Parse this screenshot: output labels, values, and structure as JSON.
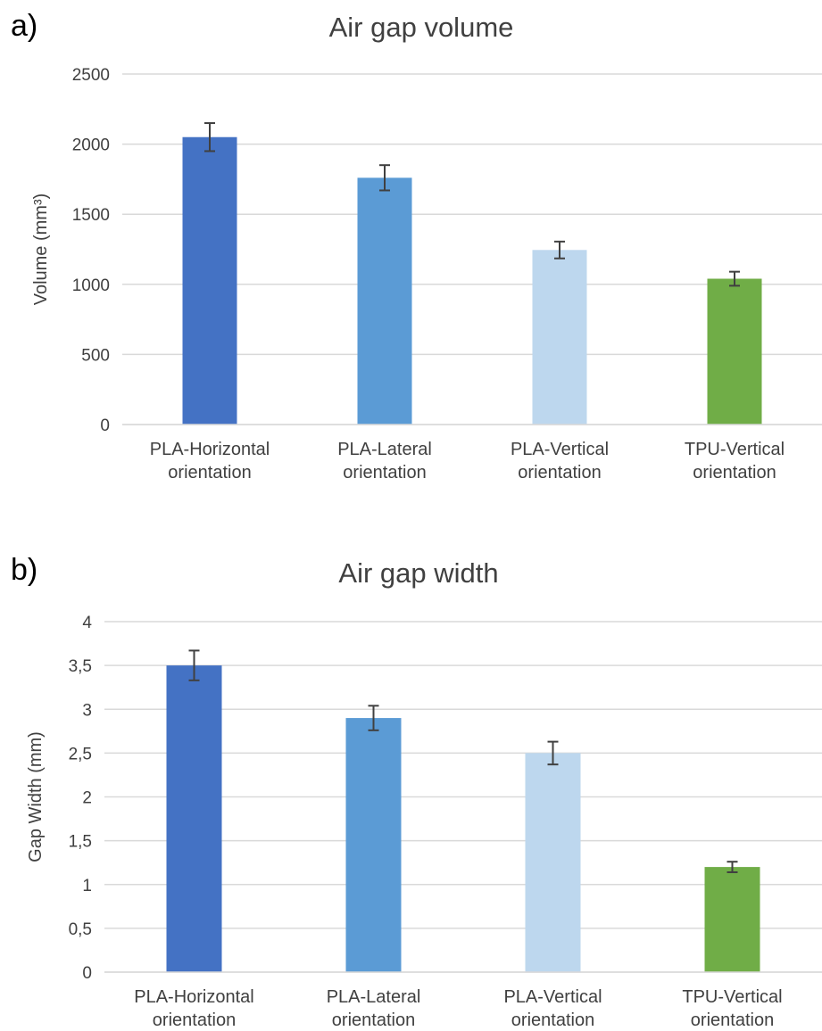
{
  "panel_labels": [
    "a)",
    "b)"
  ],
  "chart_data": [
    {
      "type": "bar",
      "title": "Air gap volume",
      "ylabel": "Volume (mm³)",
      "xlabel": "",
      "categories": [
        [
          "PLA-Horizontal",
          "orientation"
        ],
        [
          "PLA-Lateral",
          "orientation"
        ],
        [
          "PLA-Vertical",
          "orientation"
        ],
        [
          "TPU-Vertical",
          "orientation"
        ]
      ],
      "values": [
        2050,
        1760,
        1245,
        1040
      ],
      "errors": [
        100,
        90,
        60,
        50
      ],
      "colors": [
        "#4472c4",
        "#5b9bd5",
        "#bdd7ee",
        "#70ad47"
      ],
      "ylim": [
        0,
        2500
      ],
      "yticks": [
        "0",
        "500",
        "1000",
        "1500",
        "2000",
        "2500"
      ],
      "grid": true
    },
    {
      "type": "bar",
      "title": "Air gap width",
      "ylabel": "Gap Width (mm)",
      "xlabel": "",
      "categories": [
        [
          "PLA-Horizontal",
          "orientation"
        ],
        [
          "PLA-Lateral",
          "orientation"
        ],
        [
          "PLA-Vertical",
          "orientation"
        ],
        [
          "TPU-Vertical",
          "orientation"
        ]
      ],
      "values": [
        3.5,
        2.9,
        2.5,
        1.2
      ],
      "errors": [
        0.17,
        0.14,
        0.13,
        0.06
      ],
      "colors": [
        "#4472c4",
        "#5b9bd5",
        "#bdd7ee",
        "#70ad47"
      ],
      "ylim": [
        0,
        4
      ],
      "yticks": [
        "0",
        "0,5",
        "1",
        "1,5",
        "2",
        "2,5",
        "3",
        "3,5",
        "4"
      ],
      "grid": true
    }
  ]
}
